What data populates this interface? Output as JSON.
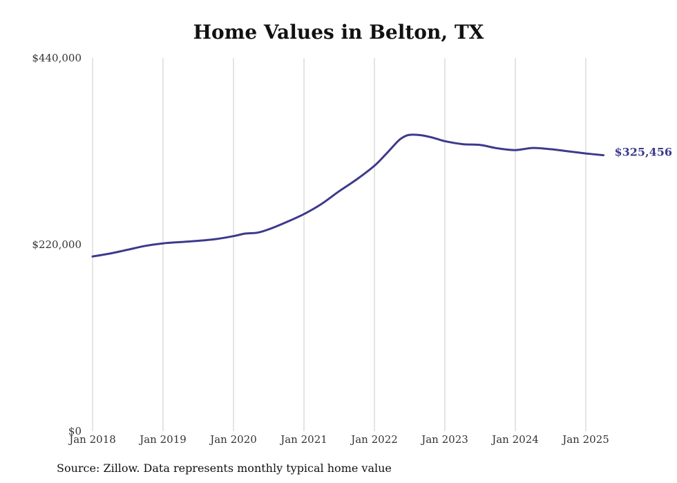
{
  "chart_data": {
    "type": "line",
    "title": "Home Values in Belton, TX",
    "source": "Source: Zillow. Data represents monthly typical home value",
    "xlabel": "",
    "ylabel": "",
    "ylim": [
      0,
      440000
    ],
    "xlim": [
      "2018-01",
      "2025-04"
    ],
    "y_ticks": [
      {
        "value": 0,
        "label": "$0"
      },
      {
        "value": 220000,
        "label": "$220,000"
      },
      {
        "value": 440000,
        "label": "$440,000"
      }
    ],
    "x_ticks": [
      {
        "value": "2018-01",
        "label": "Jan 2018"
      },
      {
        "value": "2019-01",
        "label": "Jan 2019"
      },
      {
        "value": "2020-01",
        "label": "Jan 2020"
      },
      {
        "value": "2021-01",
        "label": "Jan 2021"
      },
      {
        "value": "2022-01",
        "label": "Jan 2022"
      },
      {
        "value": "2023-01",
        "label": "Jan 2023"
      },
      {
        "value": "2024-01",
        "label": "Jan 2024"
      },
      {
        "value": "2025-01",
        "label": "Jan 2025"
      }
    ],
    "grid": "vertical",
    "end_label": "$325,456",
    "series": [
      {
        "color": "#3c3a8c",
        "points": [
          {
            "x": "2018-01",
            "y": 206000
          },
          {
            "x": "2018-04",
            "y": 209500
          },
          {
            "x": "2018-07",
            "y": 214000
          },
          {
            "x": "2018-10",
            "y": 218500
          },
          {
            "x": "2019-01",
            "y": 221500
          },
          {
            "x": "2019-04",
            "y": 223000
          },
          {
            "x": "2019-07",
            "y": 224500
          },
          {
            "x": "2019-10",
            "y": 226500
          },
          {
            "x": "2020-01",
            "y": 230000
          },
          {
            "x": "2020-03",
            "y": 233000
          },
          {
            "x": "2020-05",
            "y": 234000
          },
          {
            "x": "2020-07",
            "y": 238000
          },
          {
            "x": "2020-10",
            "y": 246500
          },
          {
            "x": "2021-01",
            "y": 256000
          },
          {
            "x": "2021-04",
            "y": 268000
          },
          {
            "x": "2021-07",
            "y": 283000
          },
          {
            "x": "2021-10",
            "y": 297000
          },
          {
            "x": "2022-01",
            "y": 313000
          },
          {
            "x": "2022-03",
            "y": 327000
          },
          {
            "x": "2022-05",
            "y": 342000
          },
          {
            "x": "2022-06",
            "y": 347000
          },
          {
            "x": "2022-07",
            "y": 349500
          },
          {
            "x": "2022-09",
            "y": 349000
          },
          {
            "x": "2022-11",
            "y": 346000
          },
          {
            "x": "2023-01",
            "y": 342000
          },
          {
            "x": "2023-04",
            "y": 338500
          },
          {
            "x": "2023-07",
            "y": 337500
          },
          {
            "x": "2023-10",
            "y": 333500
          },
          {
            "x": "2024-01",
            "y": 331500
          },
          {
            "x": "2024-04",
            "y": 334000
          },
          {
            "x": "2024-07",
            "y": 332500
          },
          {
            "x": "2024-10",
            "y": 330000
          },
          {
            "x": "2025-01",
            "y": 327500
          },
          {
            "x": "2025-04",
            "y": 325456
          }
        ]
      }
    ]
  }
}
